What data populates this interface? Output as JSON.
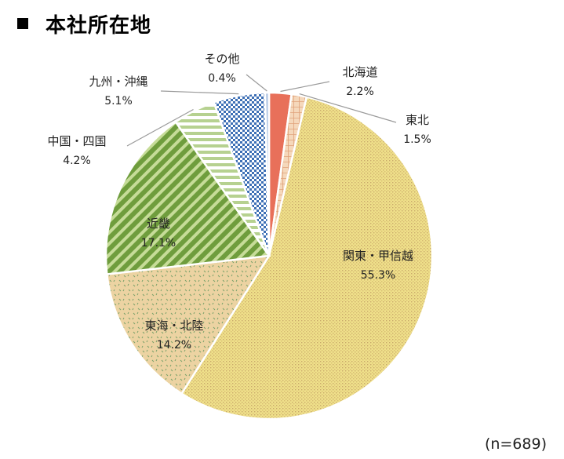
{
  "title": "本社所在地",
  "note": "(n=689)",
  "chart_data": {
    "type": "pie",
    "title": "本社所在地",
    "slices": [
      {
        "label": "北海道",
        "value": 2.2,
        "value_label": "2.2%",
        "color": "#e8705a"
      },
      {
        "label": "東北",
        "value": 1.5,
        "value_label": "1.5%",
        "color": "#f2c9a4"
      },
      {
        "label": "関東・甲信越",
        "value": 55.3,
        "value_label": "55.3%",
        "color": "#ecd97a"
      },
      {
        "label": "東海・北陸",
        "value": 14.2,
        "value_label": "14.2%",
        "color": "#e9cf98"
      },
      {
        "label": "近畿",
        "value": 17.1,
        "value_label": "17.1%",
        "color": "#7ea845"
      },
      {
        "label": "中国・四国",
        "value": 4.2,
        "value_label": "4.2%",
        "color": "#b6d190"
      },
      {
        "label": "九州・沖縄",
        "value": 5.1,
        "value_label": "5.1%",
        "color": "#3d6fb5"
      },
      {
        "label": "その他",
        "value": 0.4,
        "value_label": "0.4%",
        "color": "#a6bedf"
      }
    ]
  }
}
